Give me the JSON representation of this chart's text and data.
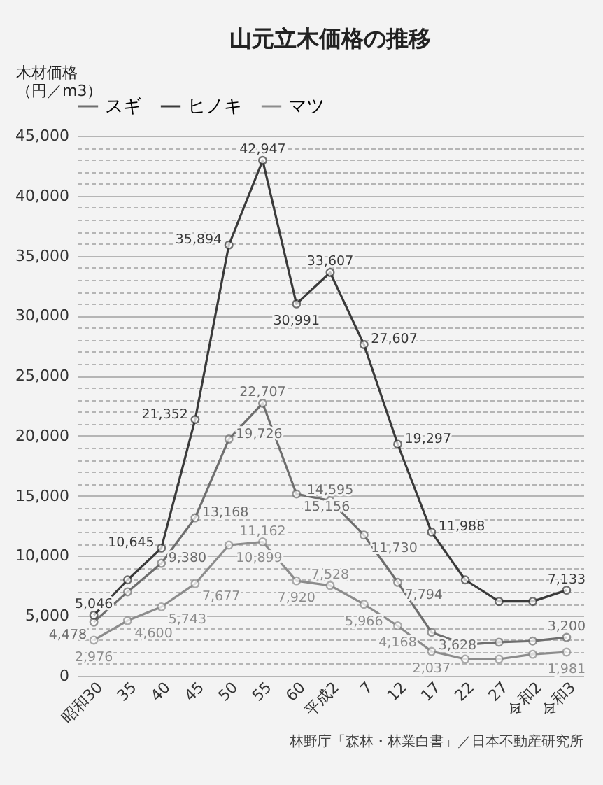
{
  "chart_data": {
    "type": "line",
    "title": "山元立木価格の推移",
    "ylabel": "木材価格（円／m3）",
    "categories": [
      "昭和30",
      "35",
      "40",
      "45",
      "50",
      "55",
      "60",
      "平成2",
      "7",
      "12",
      "17",
      "22",
      "27",
      "令和2",
      "令和3"
    ],
    "series": [
      {
        "name": "スギ",
        "color": "#6e6e6e",
        "values": [
          4478,
          7000,
          9380,
          13168,
          19726,
          22707,
          15156,
          14595,
          11730,
          7794,
          3628,
          2600,
          2800,
          2900,
          3200
        ],
        "value_labels": [
          "4,478",
          null,
          "9,380",
          "13,168",
          "19,726",
          "22,707",
          "15,156",
          "14,595",
          "11,730",
          "7,794",
          "3,628",
          null,
          null,
          null,
          "3,200"
        ]
      },
      {
        "name": "ヒノキ",
        "color": "#3a3a3a",
        "values": [
          5046,
          8000,
          10645,
          21352,
          35894,
          42947,
          30991,
          33607,
          27607,
          19297,
          11988,
          8000,
          6200,
          6200,
          7133
        ],
        "value_labels": [
          "5,046",
          null,
          "10,645",
          "21,352",
          "35,894",
          "42,947",
          "30,991",
          "33,607",
          "27,607",
          "19,297",
          "11,988",
          null,
          null,
          null,
          "7,133"
        ]
      },
      {
        "name": "マツ",
        "color": "#8c8c8c",
        "values": [
          2976,
          4600,
          5743,
          7677,
          10899,
          11162,
          7920,
          7528,
          5966,
          4168,
          2037,
          1400,
          1400,
          1800,
          1981
        ],
        "value_labels": [
          "2,976",
          "4,600",
          "5,743",
          "7,677",
          "10,899",
          "11,162",
          "7,920",
          "7,528",
          "5,966",
          "4,168",
          "2,037",
          null,
          null,
          null,
          "1,981"
        ]
      }
    ],
    "ylim": [
      0,
      45000
    ],
    "yticks": [
      0,
      {
        "value": 1000,
        "label": null
      },
      {
        "value": 2000,
        "label": null
      },
      {
        "value": 3000,
        "label": null
      },
      {
        "value": 4000,
        "label": null
      },
      {
        "value": 5000,
        "label": "5,000"
      },
      {
        "value": 6000,
        "label": null
      },
      {
        "value": 7000,
        "label": null
      },
      {
        "value": 8000,
        "label": null
      },
      {
        "value": 9000,
        "label": null
      },
      {
        "value": 10000,
        "label": "10,000"
      },
      {
        "value": 11000,
        "label": null
      },
      {
        "value": 12000,
        "label": null
      },
      {
        "value": 13000,
        "label": null
      },
      {
        "value": 14000,
        "label": null
      },
      {
        "value": 15000,
        "label": "15,000"
      },
      {
        "value": 16000,
        "label": null
      },
      {
        "value": 17000,
        "label": null
      },
      {
        "value": 18000,
        "label": null
      },
      {
        "value": 19000,
        "label": null
      },
      {
        "value": 20000,
        "label": "20,000"
      },
      {
        "value": 21000,
        "label": null
      },
      {
        "value": 22000,
        "label": null
      },
      {
        "value": 23000,
        "label": null
      },
      {
        "value": 24000,
        "label": null
      },
      {
        "value": 25000,
        "label": "25,000"
      },
      {
        "value": 26000,
        "label": null
      },
      {
        "value": 27000,
        "label": null
      },
      {
        "value": 28000,
        "label": null
      },
      {
        "value": 29000,
        "label": null
      },
      {
        "value": 30000,
        "label": "30,000"
      },
      {
        "value": 31000,
        "label": null
      },
      {
        "value": 32000,
        "label": null
      },
      {
        "value": 33000,
        "label": null
      },
      {
        "value": 34000,
        "label": null
      },
      {
        "value": 35000,
        "label": "35,000"
      },
      {
        "value": 36000,
        "label": null
      },
      {
        "value": 37000,
        "label": null
      },
      {
        "value": 38000,
        "label": null
      },
      {
        "value": 39000,
        "label": null
      },
      {
        "value": 40000,
        "label": "40,000"
      },
      {
        "value": 41000,
        "label": null
      },
      {
        "value": 42000,
        "label": null
      },
      {
        "value": 43000,
        "label": null
      },
      {
        "value": 44000,
        "label": null
      },
      {
        "value": 45000,
        "label": "45,000"
      }
    ],
    "grid": "y",
    "legend": "top",
    "marker": "circle",
    "line_style": "solid",
    "annotations": [
      "林野庁「森林・林業白書」／日本不動産研究所"
    ]
  }
}
